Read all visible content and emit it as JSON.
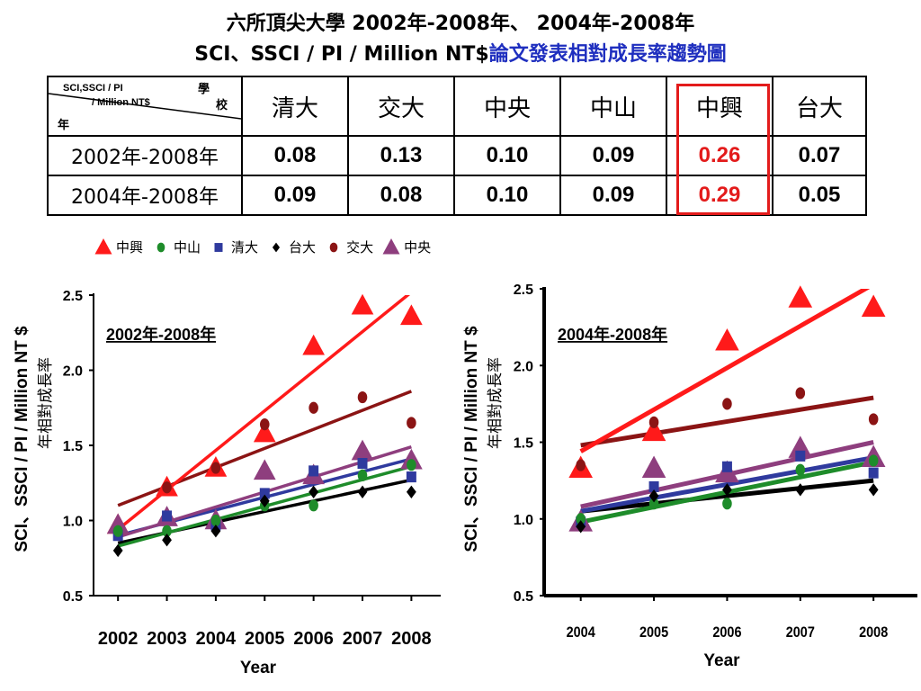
{
  "header": {
    "title_line1": "六所頂尖大學 2002年-2008年、 2004年-2008年",
    "title_line2_plain": "SCI、SSCI / PI / Million NT$",
    "title_line2_blue": "論文發表相對成長率趨勢圖"
  },
  "table": {
    "corner": {
      "metric_line1": "SCI,SSCI / PI",
      "metric_line2": "/ Million NT$",
      "col_label_1": "學",
      "col_label_2": "校",
      "row_label": "年"
    },
    "schools": [
      "清大",
      "交大",
      "中央",
      "中山",
      "中興",
      "台大"
    ],
    "rows": [
      {
        "period": "2002年-2008年",
        "values": [
          "0.08",
          "0.13",
          "0.10",
          "0.09",
          "0.26",
          "0.07"
        ]
      },
      {
        "period": "2004年-2008年",
        "values": [
          "0.09",
          "0.08",
          "0.10",
          "0.09",
          "0.29",
          "0.05"
        ]
      }
    ],
    "highlight_school": "中興",
    "highlight_color": "#e31b1b"
  },
  "legend": [
    {
      "name": "中興",
      "marker": "triangle",
      "color": "#ff1a1a"
    },
    {
      "name": "中山",
      "marker": "circle",
      "color": "#1e8c2a"
    },
    {
      "name": "清大",
      "marker": "square",
      "color": "#2f3a9e"
    },
    {
      "name": "台大",
      "marker": "diamond",
      "color": "#000000"
    },
    {
      "name": "交大",
      "marker": "circle",
      "color": "#8b1414"
    },
    {
      "name": "中央",
      "marker": "triangle",
      "color": "#8e3e7e"
    }
  ],
  "chart_data": [
    {
      "type": "scatter",
      "title": "2002年-2008年",
      "xlabel": "Year",
      "ylabel": "SCI、SSCI / PI / Million NT $",
      "ylabel2": "年相對成長率",
      "x": [
        2002,
        2003,
        2004,
        2005,
        2006,
        2007,
        2008
      ],
      "x_ticks": [
        "2002",
        "2003",
        "2004",
        "2005",
        "2006",
        "2007",
        "2008"
      ],
      "ylim": [
        0.5,
        2.5
      ],
      "y_ticks": [
        "0.5",
        "1.0",
        "1.5",
        "2.0",
        "2.5"
      ],
      "trendlines": true,
      "series": [
        {
          "name": "中興",
          "marker": "triangle",
          "color": "#ff1a1a",
          "values": [
            0.97,
            1.22,
            1.35,
            1.58,
            2.16,
            2.43,
            2.36
          ],
          "trend": [
            0.94,
            2.52
          ]
        },
        {
          "name": "交大",
          "marker": "circle",
          "color": "#8b1414",
          "values": [
            0.97,
            1.22,
            1.35,
            1.64,
            1.75,
            1.82,
            1.65
          ],
          "trend": [
            1.1,
            1.86
          ]
        },
        {
          "name": "中央",
          "marker": "triangle",
          "color": "#8e3e7e",
          "values": [
            0.97,
            1.02,
            1.0,
            1.33,
            1.3,
            1.46,
            1.4
          ],
          "trend": [
            0.89,
            1.49
          ]
        },
        {
          "name": "清大",
          "marker": "square",
          "color": "#2f3a9e",
          "values": [
            0.9,
            1.03,
            0.97,
            1.18,
            1.33,
            1.38,
            1.29
          ],
          "trend": [
            0.9,
            1.41
          ]
        },
        {
          "name": "中山",
          "marker": "circle",
          "color": "#1e8c2a",
          "values": [
            0.93,
            0.93,
            1.0,
            1.1,
            1.1,
            1.3,
            1.37
          ],
          "trend": [
            0.83,
            1.36
          ]
        },
        {
          "name": "台大",
          "marker": "diamond",
          "color": "#000000",
          "values": [
            0.8,
            0.87,
            0.93,
            1.13,
            1.19,
            1.19,
            1.19
          ],
          "trend": [
            0.85,
            1.27
          ]
        }
      ]
    },
    {
      "type": "scatter",
      "title": "2004年-2008年",
      "xlabel": "Year",
      "ylabel": "SCI、SSCI / PI / Million NT $",
      "ylabel2": "年相對成長率",
      "x": [
        2004,
        2005,
        2006,
        2007,
        2008
      ],
      "x_ticks": [
        "2004",
        "2005",
        "2006",
        "2007",
        "2008"
      ],
      "ylim": [
        0.5,
        2.5
      ],
      "y_ticks": [
        "0.5",
        "1.0",
        "1.5",
        "2.0",
        "2.5"
      ],
      "trendlines": true,
      "series": [
        {
          "name": "中興",
          "marker": "triangle",
          "color": "#ff1a1a",
          "values": [
            1.33,
            1.57,
            2.16,
            2.44,
            2.38
          ],
          "trend": [
            1.44,
            2.53
          ]
        },
        {
          "name": "交大",
          "marker": "circle",
          "color": "#8b1414",
          "values": [
            1.35,
            1.63,
            1.75,
            1.82,
            1.65
          ],
          "trend": [
            1.48,
            1.79
          ]
        },
        {
          "name": "中央",
          "marker": "triangle",
          "color": "#8e3e7e",
          "values": [
            0.98,
            1.33,
            1.3,
            1.46,
            1.4
          ],
          "trend": [
            1.08,
            1.5
          ]
        },
        {
          "name": "清大",
          "marker": "square",
          "color": "#2f3a9e",
          "values": [
            0.98,
            1.21,
            1.34,
            1.41,
            1.3
          ],
          "trend": [
            1.05,
            1.4
          ]
        },
        {
          "name": "中山",
          "marker": "circle",
          "color": "#1e8c2a",
          "values": [
            1.0,
            1.1,
            1.1,
            1.32,
            1.38
          ],
          "trend": [
            0.98,
            1.37
          ]
        },
        {
          "name": "台大",
          "marker": "diamond",
          "color": "#000000",
          "values": [
            0.95,
            1.15,
            1.19,
            1.19,
            1.19
          ],
          "trend": [
            1.05,
            1.25
          ]
        }
      ]
    }
  ]
}
